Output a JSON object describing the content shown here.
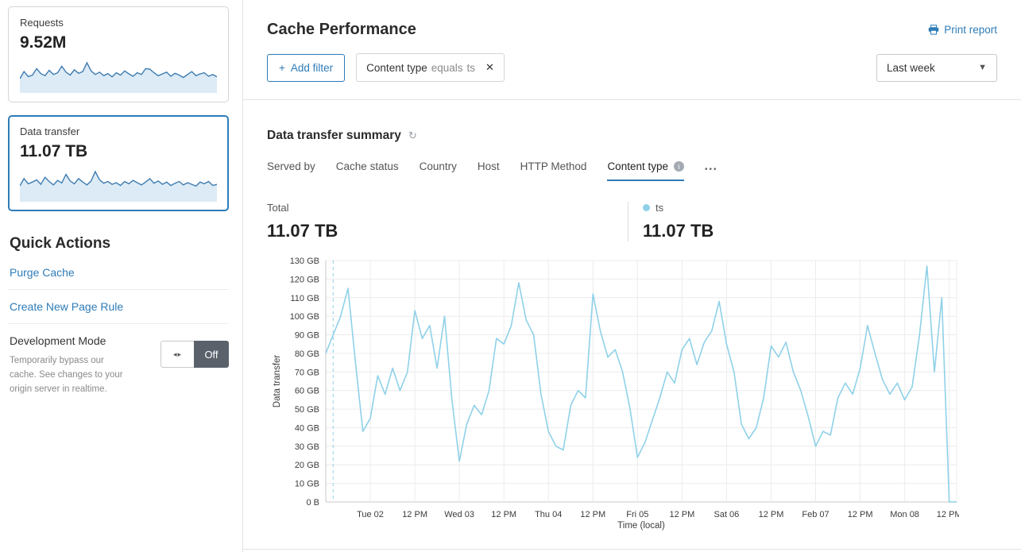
{
  "colors": {
    "accent_blue": "#2e7cb8",
    "chart_line_blue": "#8fd1e8",
    "sparkline_blue": "#3e7cb1",
    "sparkline_fill": "#dcebf5",
    "toggle_off_bg": "#5a616b"
  },
  "sidebar": {
    "metric_cards": [
      {
        "label": "Requests",
        "value": "9.52M",
        "selected": false,
        "spark": [
          38,
          62,
          45,
          50,
          72,
          55,
          48,
          66,
          52,
          58,
          80,
          60,
          50,
          68,
          56,
          62,
          92,
          64,
          52,
          60,
          48,
          55,
          44,
          58,
          50,
          64,
          54,
          46,
          58,
          52,
          72,
          70,
          58,
          48,
          54,
          60,
          46,
          56,
          50,
          42,
          52,
          62,
          48,
          54,
          58,
          46,
          52,
          44
        ]
      },
      {
        "label": "Data transfer",
        "value": "11.07 TB",
        "selected": true,
        "spark": [
          45,
          70,
          52,
          58,
          66,
          50,
          75,
          60,
          48,
          64,
          55,
          85,
          62,
          52,
          70,
          58,
          48,
          62,
          95,
          66,
          54,
          60,
          50,
          56,
          46,
          60,
          52,
          64,
          56,
          48,
          58,
          70,
          54,
          62,
          50,
          58,
          46,
          54,
          60,
          48,
          56,
          50,
          44,
          58,
          52,
          60,
          46,
          50
        ]
      }
    ],
    "quick_actions": {
      "title": "Quick Actions",
      "purge_cache": "Purge Cache",
      "create_page_rule": "Create New Page Rule",
      "dev_mode_title": "Development Mode",
      "dev_mode_description": "Temporarily bypass our cache. See changes to your origin server in realtime.",
      "dev_mode_state": "Off"
    }
  },
  "header": {
    "title": "Cache Performance",
    "print_report": "Print report"
  },
  "filter_bar": {
    "add_filter": "Add filter",
    "plus": "+",
    "chip_field": "Content type",
    "chip_operator": "equals",
    "chip_value": "ts",
    "chip_close": "✕",
    "time_range": "Last week"
  },
  "summary": {
    "title": "Data transfer summary",
    "tabs": [
      {
        "label": "Served by",
        "active": false,
        "info": false
      },
      {
        "label": "Cache status",
        "active": false,
        "info": false
      },
      {
        "label": "Country",
        "active": false,
        "info": false
      },
      {
        "label": "Host",
        "active": false,
        "info": false
      },
      {
        "label": "HTTP Method",
        "active": false,
        "info": false
      },
      {
        "label": "Content type",
        "active": true,
        "info": true
      }
    ],
    "more": "•••",
    "total_label": "Total",
    "total_value": "11.07 TB",
    "legend_name": "ts",
    "legend_value": "11.07 TB",
    "legend_color": "#8fd1e8"
  },
  "chart_data": {
    "type": "line",
    "title": "Data transfer summary",
    "xlabel": "Time (local)",
    "ylabel": "Data transfer",
    "ylim": [
      0,
      130
    ],
    "y_unit": "GB",
    "y_ticks": [
      "0 B",
      "10 GB",
      "20 GB",
      "30 GB",
      "40 GB",
      "50 GB",
      "60 GB",
      "70 GB",
      "80 GB",
      "90 GB",
      "100 GB",
      "110 GB",
      "120 GB",
      "130 GB"
    ],
    "x_ticks": [
      "Tue 02",
      "12 PM",
      "Wed 03",
      "12 PM",
      "Thu 04",
      "12 PM",
      "Fri 05",
      "12 PM",
      "Sat 06",
      "12 PM",
      "Feb 07",
      "12 PM",
      "Mon 08",
      "12 PM"
    ],
    "interval_hours": 2,
    "first_tick_offset_hours": 12,
    "tick_step_hours": 12,
    "total_span_hours": 170,
    "grid": true,
    "legend_position": "top-right",
    "dashed_start_marker_hour": 2,
    "series": [
      {
        "name": "ts",
        "color": "#8fd1e8",
        "values_gb": [
          80,
          90,
          100,
          115,
          75,
          38,
          45,
          68,
          58,
          72,
          60,
          70,
          103,
          88,
          95,
          72,
          100,
          55,
          22,
          42,
          52,
          47,
          60,
          88,
          85,
          95,
          118,
          98,
          90,
          58,
          38,
          30,
          28,
          52,
          60,
          56,
          112,
          92,
          78,
          82,
          70,
          50,
          24,
          32,
          44,
          56,
          70,
          64,
          82,
          88,
          74,
          86,
          92,
          108,
          85,
          70,
          42,
          34,
          40,
          56,
          84,
          78,
          86,
          70,
          60,
          46,
          30,
          38,
          36,
          56,
          64,
          58,
          72,
          95,
          80,
          66,
          58,
          64,
          55,
          62,
          90,
          127,
          70,
          110,
          0,
          0
        ]
      }
    ]
  }
}
